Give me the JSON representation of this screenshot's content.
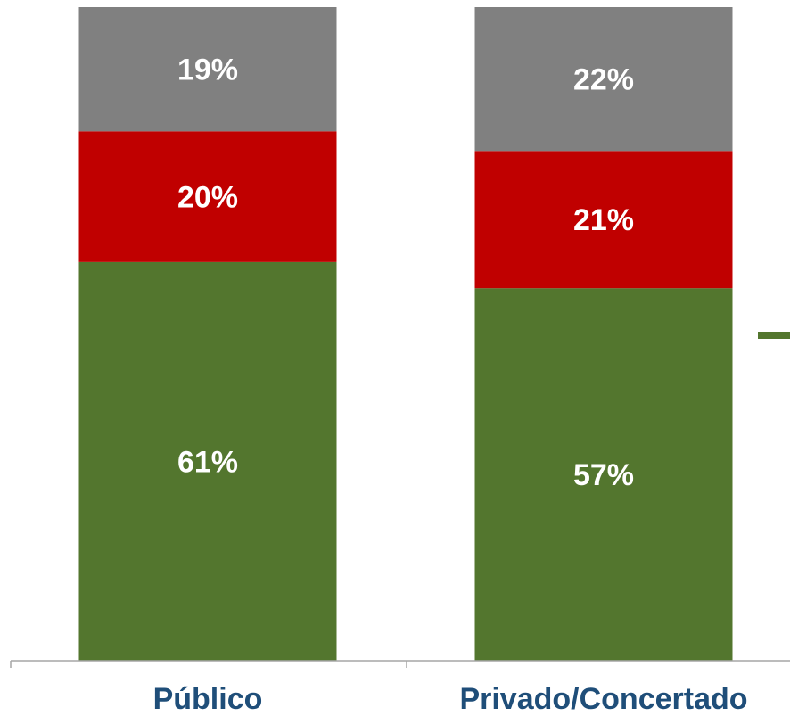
{
  "chart_data": {
    "type": "bar",
    "stacked": true,
    "categories": [
      "Público",
      "Privado/Concertado"
    ],
    "series": [
      {
        "values": [
          61,
          57
        ],
        "color": "#53762E"
      },
      {
        "values": [
          20,
          21
        ],
        "color": "#C00000"
      },
      {
        "values": [
          19,
          22
        ],
        "color": "#808080"
      }
    ],
    "value_labels": [
      [
        "61%",
        "57%"
      ],
      [
        "20%",
        "21%"
      ],
      [
        "19%",
        "22%"
      ]
    ],
    "ylim": [
      0,
      100
    ],
    "legend": {
      "visible": true,
      "position": "right",
      "marker_color": "#53762E"
    }
  }
}
